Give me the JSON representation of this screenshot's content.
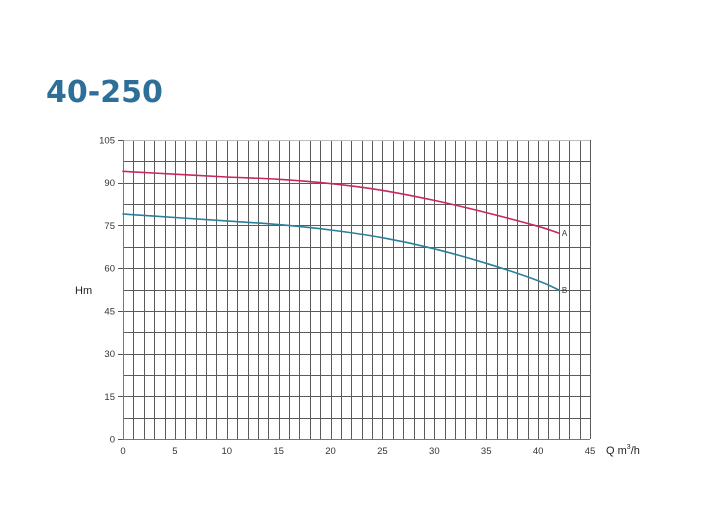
{
  "title": "40-250",
  "chart_data": {
    "type": "line",
    "title": "40-250",
    "xlabel": "Q m³/h",
    "xlabel_parts": {
      "main": "Q m",
      "sup": "3",
      "tail": "/h"
    },
    "ylabel": "Hm",
    "xlim": [
      0,
      45
    ],
    "ylim": [
      0,
      105
    ],
    "x_ticks": [
      0,
      5,
      10,
      15,
      20,
      25,
      30,
      35,
      40,
      45
    ],
    "y_ticks": [
      0,
      15,
      30,
      45,
      60,
      75,
      90,
      105
    ],
    "x_grid_step": 1,
    "y_grid_step": 7.5,
    "grid": true,
    "legend": "inline curve-end labels",
    "series": [
      {
        "name": "A",
        "color": "#c8285a",
        "x": [
          0,
          5,
          10,
          15,
          20,
          25,
          30,
          35,
          40,
          42
        ],
        "values": [
          94,
          93,
          92,
          91.2,
          89.7,
          87.3,
          83.8,
          79.5,
          74.7,
          72.3
        ]
      },
      {
        "name": "B",
        "color": "#2a7f99",
        "x": [
          0,
          5,
          10,
          15,
          20,
          25,
          30,
          35,
          40,
          42
        ],
        "values": [
          79,
          77.8,
          76.6,
          75.3,
          73.4,
          70.7,
          66.8,
          61.7,
          55.6,
          52.3
        ]
      }
    ]
  },
  "colors": {
    "title": "#2e6f99",
    "grid": "#5a5a5a"
  }
}
